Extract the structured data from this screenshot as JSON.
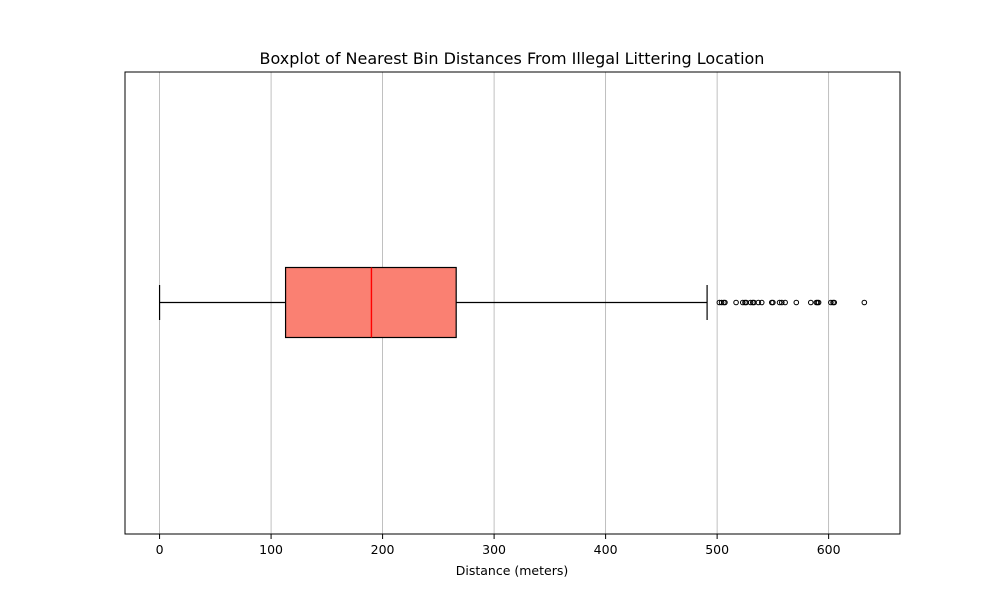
{
  "chart_data": {
    "type": "boxplot",
    "orientation": "horizontal",
    "title": "Boxplot of Nearest Bin Distances From Illegal Littering Location",
    "xlabel": "Distance (meters)",
    "ylabel": "",
    "xlim": [
      -31,
      664
    ],
    "xticks": [
      0,
      100,
      200,
      300,
      400,
      500,
      600
    ],
    "xtick_labels": [
      "0",
      "100",
      "200",
      "300",
      "400",
      "500",
      "600"
    ],
    "grid": "x-axis vertical lines",
    "box": {
      "whisker_low": 0,
      "q1": 113,
      "median": 190,
      "q3": 266,
      "whisker_high": 491,
      "outliers": [
        502,
        504,
        506,
        507,
        517,
        523,
        525,
        526,
        530,
        532,
        533,
        537,
        540,
        549,
        550,
        556,
        558,
        561,
        571,
        584,
        589,
        590,
        591,
        602,
        604,
        605,
        632
      ]
    },
    "colors": {
      "box_fill": "#fa8072",
      "median": "#ff0000",
      "lines": "#000000",
      "grid": "#b0b0b0"
    }
  }
}
